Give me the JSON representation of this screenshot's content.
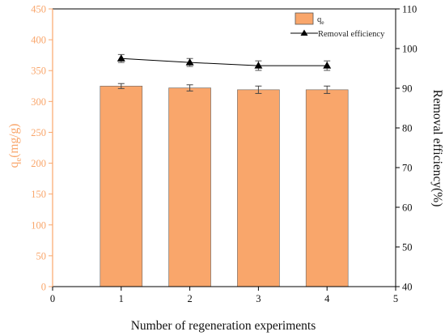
{
  "chart_data": {
    "type": "bar",
    "categories": [
      1,
      2,
      3,
      4
    ],
    "x_ticks": [
      0,
      1,
      2,
      3,
      4,
      5
    ],
    "xlim": [
      0,
      5
    ],
    "xlabel": "Number of regeneration experiments",
    "ylabel_left": {
      "main": "q",
      "sub": "e",
      "rest": "(mg/g)"
    },
    "ylabel_right": "Removal efficiency(%)",
    "ylim_left": [
      0,
      450
    ],
    "ylim_right": [
      40,
      110
    ],
    "yticks_left": [
      0,
      50,
      100,
      150,
      200,
      250,
      300,
      350,
      400,
      450
    ],
    "yticks_right": [
      40,
      50,
      60,
      70,
      80,
      90,
      100,
      110
    ],
    "series": [
      {
        "name": "qe",
        "label_main": "q",
        "label_sub": "e",
        "type": "bar",
        "axis": "left",
        "values": [
          325,
          322,
          319,
          319
        ],
        "errors": [
          4,
          5,
          6,
          6
        ],
        "color": "#F9A66B"
      },
      {
        "name": "Removal efficiency",
        "type": "line",
        "axis": "right",
        "values": [
          97.5,
          96.5,
          95.7,
          95.7
        ],
        "errors": [
          1.0,
          1.0,
          1.2,
          1.2
        ],
        "color": "#000000",
        "marker": "triangle"
      }
    ],
    "left_axis_color": "#F9A66B",
    "right_axis_color": "#000000",
    "legend_position": "top-right"
  }
}
